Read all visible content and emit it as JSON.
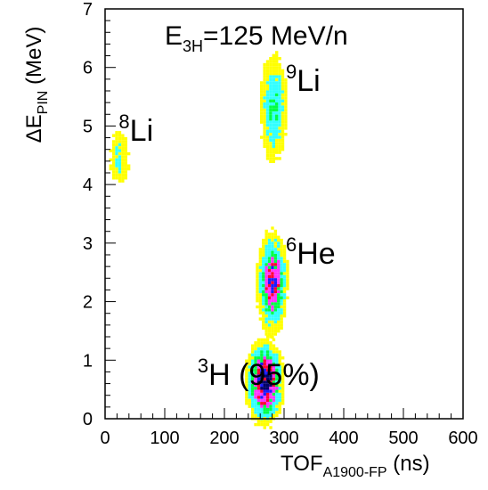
{
  "chart_data": {
    "type": "heatmap",
    "title": "E_3H=125 MeV/n",
    "title_parts": {
      "base": "E",
      "sub": "3H",
      "rest": "=125 MeV/n"
    },
    "xlabel_parts": {
      "base": "TOF",
      "sub": "A1900-FP",
      "rest": " (ns)"
    },
    "ylabel_parts": {
      "base": "ΔE",
      "sub": "PIN",
      "rest": " (MeV)"
    },
    "xlim": [
      0,
      600
    ],
    "ylim": [
      0,
      7
    ],
    "x_ticks": [
      "0",
      "100",
      "200",
      "300",
      "400",
      "500",
      "600"
    ],
    "y_ticks": [
      "0",
      "1",
      "2",
      "3",
      "4",
      "5",
      "6",
      "7"
    ],
    "grid": false,
    "palette": [
      "#ffff00",
      "#33ffff",
      "#00ff44",
      "#ff33ff",
      "#ff0033",
      "#1a1aff",
      "#000066"
    ],
    "clusters": [
      {
        "x": 265,
        "y": 0.65,
        "sx": 14,
        "sy": 0.32,
        "level": 7
      },
      {
        "x": 278,
        "y": 2.35,
        "sx": 12,
        "sy": 0.4,
        "level": 5
      },
      {
        "x": 280,
        "y": 5.35,
        "sx": 12,
        "sy": 0.48,
        "level": 2.2
      },
      {
        "x": 22,
        "y": 4.5,
        "sx": 10,
        "sy": 0.28,
        "level": 1.3
      }
    ],
    "annotations": [
      {
        "id": "3h",
        "mass": "3",
        "element": "H",
        "suffix": " (95%)",
        "x": 155,
        "y": 0.58
      },
      {
        "id": "6he",
        "mass": "6",
        "element": "He",
        "suffix": "",
        "x": 303,
        "y": 2.65
      },
      {
        "id": "9li",
        "mass": "9",
        "element": "Li",
        "suffix": "",
        "x": 303,
        "y": 5.6
      },
      {
        "id": "8li",
        "mass": "8",
        "element": "Li",
        "suffix": "",
        "x": 23,
        "y": 4.75
      }
    ]
  }
}
